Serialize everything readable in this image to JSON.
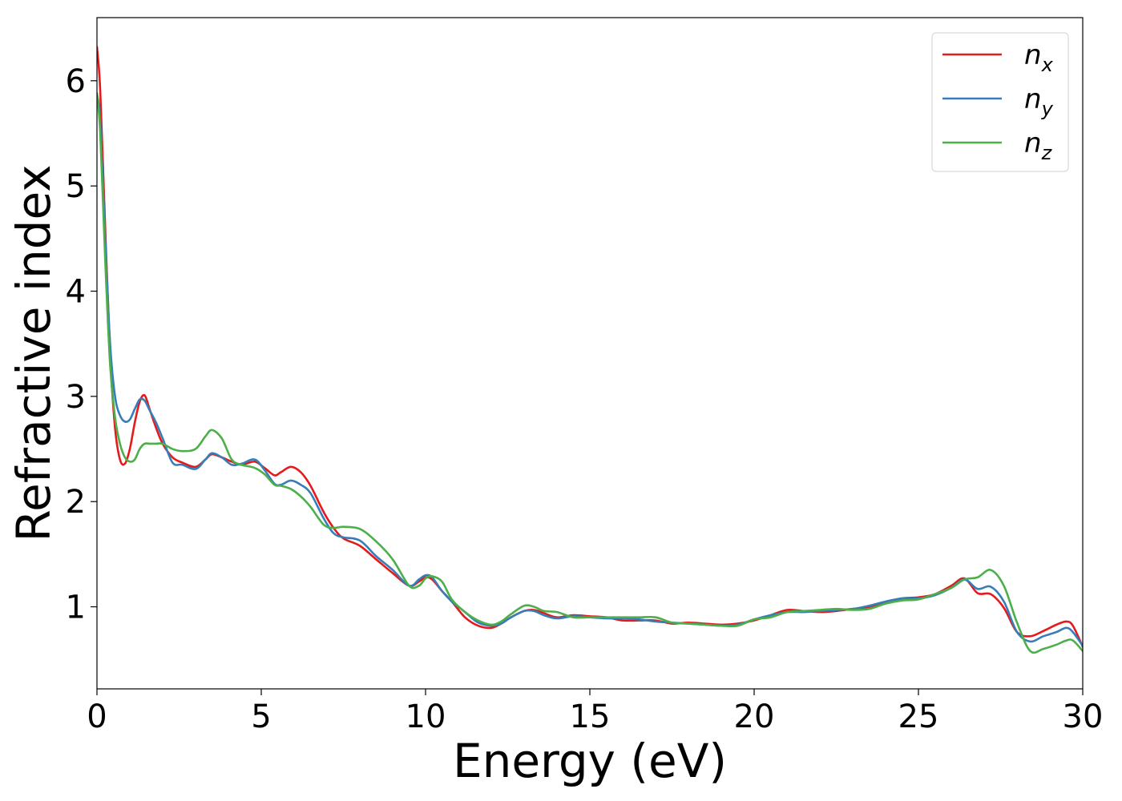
{
  "chart_data": {
    "type": "line",
    "xlabel": "Energy (eV)",
    "ylabel": "Refractive index",
    "xlim": [
      0,
      30
    ],
    "ylim": [
      0.22,
      6.6
    ],
    "xticks": [
      0,
      5,
      10,
      15,
      20,
      25,
      30
    ],
    "xtick_labels": [
      "0",
      "5",
      "10",
      "15",
      "20",
      "25",
      "30"
    ],
    "yticks": [
      1,
      2,
      3,
      4,
      5,
      6
    ],
    "ytick_labels": [
      "1",
      "2",
      "3",
      "4",
      "5",
      "6"
    ],
    "grid": false,
    "legend_position": "top-right",
    "series": [
      {
        "name": "n_x",
        "label_base": "n",
        "label_sub": "x",
        "color": "#e41a1c",
        "x": [
          0,
          0.1,
          0.25,
          0.4,
          0.55,
          0.7,
          0.85,
          1.0,
          1.15,
          1.3,
          1.45,
          1.6,
          1.8,
          2.0,
          2.3,
          2.6,
          3.0,
          3.3,
          3.5,
          3.8,
          4.1,
          4.4,
          4.8,
          5.1,
          5.4,
          5.6,
          5.9,
          6.2,
          6.5,
          6.9,
          7.2,
          7.5,
          8.0,
          8.5,
          9.0,
          9.5,
          9.8,
          10.0,
          10.2,
          10.5,
          10.8,
          11.2,
          11.6,
          12.0,
          12.3,
          12.6,
          13.0,
          13.3,
          13.6,
          14.0,
          14.5,
          15.0,
          15.5,
          16.0,
          16.5,
          17.0,
          17.5,
          18.0,
          18.5,
          19.0,
          19.5,
          20.0,
          20.5,
          21.0,
          21.5,
          22.0,
          22.5,
          23.0,
          23.5,
          24.0,
          24.5,
          25.0,
          25.5,
          26.0,
          26.4,
          26.8,
          27.2,
          27.6,
          28.0,
          28.4,
          28.8,
          29.2,
          29.5,
          29.7,
          30.0
        ],
        "values": [
          6.32,
          5.9,
          4.6,
          3.4,
          2.7,
          2.4,
          2.36,
          2.5,
          2.75,
          2.95,
          3.01,
          2.88,
          2.7,
          2.55,
          2.42,
          2.37,
          2.33,
          2.4,
          2.45,
          2.42,
          2.38,
          2.35,
          2.38,
          2.32,
          2.25,
          2.28,
          2.33,
          2.28,
          2.15,
          1.9,
          1.75,
          1.65,
          1.58,
          1.45,
          1.32,
          1.2,
          1.24,
          1.28,
          1.26,
          1.15,
          1.05,
          0.9,
          0.82,
          0.8,
          0.84,
          0.9,
          0.96,
          0.97,
          0.94,
          0.9,
          0.92,
          0.91,
          0.9,
          0.87,
          0.87,
          0.87,
          0.84,
          0.85,
          0.84,
          0.83,
          0.84,
          0.87,
          0.92,
          0.97,
          0.96,
          0.95,
          0.96,
          0.98,
          1.0,
          1.04,
          1.08,
          1.09,
          1.12,
          1.2,
          1.27,
          1.13,
          1.12,
          0.99,
          0.76,
          0.72,
          0.77,
          0.83,
          0.86,
          0.82,
          0.62
        ]
      },
      {
        "name": "n_y",
        "label_base": "n",
        "label_sub": "y",
        "color": "#377eb8",
        "x": [
          0,
          0.1,
          0.25,
          0.4,
          0.55,
          0.7,
          0.85,
          1.0,
          1.15,
          1.3,
          1.45,
          1.6,
          1.8,
          2.0,
          2.3,
          2.6,
          3.0,
          3.3,
          3.5,
          3.8,
          4.1,
          4.4,
          4.8,
          5.1,
          5.4,
          5.6,
          5.9,
          6.2,
          6.5,
          6.9,
          7.2,
          7.5,
          8.0,
          8.5,
          9.0,
          9.5,
          9.8,
          10.0,
          10.2,
          10.5,
          10.8,
          11.2,
          11.6,
          12.0,
          12.3,
          12.6,
          13.0,
          13.3,
          13.6,
          14.0,
          14.5,
          15.0,
          15.5,
          16.0,
          16.5,
          17.0,
          17.5,
          18.0,
          18.5,
          19.0,
          19.5,
          20.0,
          20.5,
          21.0,
          21.5,
          22.0,
          22.5,
          23.0,
          23.5,
          24.0,
          24.5,
          25.0,
          25.5,
          26.0,
          26.4,
          26.8,
          27.2,
          27.6,
          28.0,
          28.4,
          28.8,
          29.2,
          29.5,
          29.7,
          30.0
        ],
        "values": [
          5.88,
          5.6,
          4.5,
          3.5,
          3.0,
          2.82,
          2.76,
          2.78,
          2.88,
          2.97,
          2.96,
          2.87,
          2.75,
          2.6,
          2.37,
          2.35,
          2.31,
          2.4,
          2.46,
          2.42,
          2.35,
          2.36,
          2.4,
          2.3,
          2.17,
          2.16,
          2.2,
          2.16,
          2.08,
          1.84,
          1.7,
          1.66,
          1.63,
          1.48,
          1.35,
          1.2,
          1.26,
          1.3,
          1.28,
          1.15,
          1.05,
          0.95,
          0.85,
          0.82,
          0.84,
          0.9,
          0.96,
          0.96,
          0.92,
          0.89,
          0.91,
          0.9,
          0.89,
          0.89,
          0.88,
          0.86,
          0.85,
          0.84,
          0.83,
          0.82,
          0.83,
          0.88,
          0.92,
          0.95,
          0.95,
          0.96,
          0.97,
          0.98,
          1.01,
          1.05,
          1.08,
          1.08,
          1.11,
          1.18,
          1.26,
          1.17,
          1.19,
          1.05,
          0.76,
          0.67,
          0.72,
          0.76,
          0.8,
          0.76,
          0.63
        ]
      },
      {
        "name": "n_z",
        "label_base": "n",
        "label_sub": "z",
        "color": "#4daf4a",
        "x": [
          0,
          0.1,
          0.25,
          0.4,
          0.55,
          0.7,
          0.85,
          1.0,
          1.15,
          1.3,
          1.45,
          1.6,
          1.8,
          2.0,
          2.3,
          2.6,
          3.0,
          3.3,
          3.5,
          3.8,
          4.1,
          4.4,
          4.8,
          5.1,
          5.4,
          5.6,
          5.9,
          6.2,
          6.5,
          6.9,
          7.2,
          7.5,
          8.0,
          8.5,
          9.0,
          9.5,
          9.8,
          10.0,
          10.2,
          10.5,
          10.8,
          11.2,
          11.6,
          12.0,
          12.3,
          12.6,
          13.0,
          13.3,
          13.6,
          14.0,
          14.5,
          15.0,
          15.5,
          16.0,
          16.5,
          17.0,
          17.5,
          18.0,
          18.5,
          19.0,
          19.5,
          20.0,
          20.5,
          21.0,
          21.5,
          22.0,
          22.5,
          23.0,
          23.5,
          24.0,
          24.5,
          25.0,
          25.5,
          26.0,
          26.4,
          26.8,
          27.2,
          27.6,
          28.0,
          28.4,
          28.8,
          29.2,
          29.5,
          29.7,
          30.0
        ],
        "values": [
          5.88,
          5.5,
          4.3,
          3.3,
          2.8,
          2.55,
          2.42,
          2.38,
          2.4,
          2.5,
          2.55,
          2.55,
          2.55,
          2.55,
          2.5,
          2.48,
          2.5,
          2.62,
          2.68,
          2.6,
          2.4,
          2.35,
          2.32,
          2.26,
          2.16,
          2.15,
          2.12,
          2.05,
          1.95,
          1.78,
          1.75,
          1.76,
          1.74,
          1.62,
          1.45,
          1.2,
          1.2,
          1.27,
          1.29,
          1.24,
          1.07,
          0.95,
          0.87,
          0.83,
          0.86,
          0.93,
          1.01,
          1.0,
          0.96,
          0.95,
          0.9,
          0.9,
          0.9,
          0.9,
          0.9,
          0.9,
          0.85,
          0.84,
          0.83,
          0.82,
          0.82,
          0.88,
          0.9,
          0.95,
          0.96,
          0.97,
          0.98,
          0.97,
          0.98,
          1.03,
          1.06,
          1.07,
          1.12,
          1.18,
          1.26,
          1.28,
          1.35,
          1.2,
          0.85,
          0.58,
          0.6,
          0.64,
          0.68,
          0.68,
          0.58
        ]
      }
    ]
  }
}
